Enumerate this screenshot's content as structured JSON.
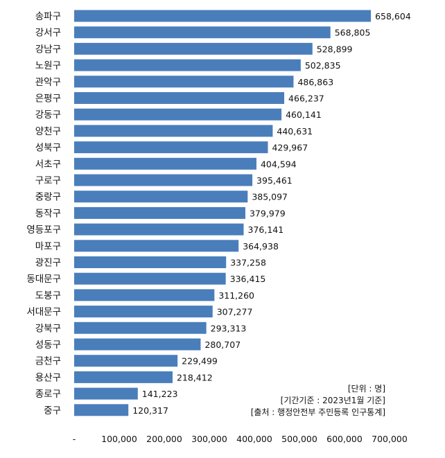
{
  "chart_data": {
    "type": "bar",
    "orientation": "horizontal",
    "categories": [
      "송파구",
      "강서구",
      "강남구",
      "노원구",
      "관악구",
      "은평구",
      "강동구",
      "양천구",
      "성북구",
      "서초구",
      "구로구",
      "중랑구",
      "동작구",
      "영등포구",
      "마포구",
      "광진구",
      "동대문구",
      "도봉구",
      "서대문구",
      "강북구",
      "성동구",
      "금천구",
      "용산구",
      "종로구",
      "중구"
    ],
    "values": [
      658604,
      568805,
      528899,
      502835,
      486863,
      466237,
      460141,
      440631,
      429967,
      404594,
      395461,
      385097,
      379979,
      376141,
      364938,
      337258,
      336415,
      311260,
      307277,
      293313,
      280707,
      229499,
      218412,
      141223,
      120317
    ],
    "value_labels": [
      "658,604",
      "568,805",
      "528,899",
      "502,835",
      "486,863",
      "466,237",
      "460,141",
      "440,631",
      "429,967",
      "404,594",
      "395,461",
      "385,097",
      "379,979",
      "376,141",
      "364,938",
      "337,258",
      "336,415",
      "311,260",
      "307,277",
      "293,313",
      "280,707",
      "229,499",
      "218,412",
      "141,223",
      "120,317"
    ],
    "xlim": [
      0,
      700000
    ],
    "x_ticks": [
      0,
      100000,
      200000,
      300000,
      400000,
      500000,
      600000,
      700000
    ],
    "x_tick_labels": [
      "-",
      "100,000",
      "200,000",
      "300,000",
      "400,000",
      "500,000",
      "600,000",
      "700,000"
    ],
    "bar_color": "#4a7ebb",
    "notes": [
      "[단위 : 명]",
      "[기간기준 : 2023년1월  기준]",
      "[출처 : 행정안전부  주민등록  인구통계]"
    ]
  }
}
